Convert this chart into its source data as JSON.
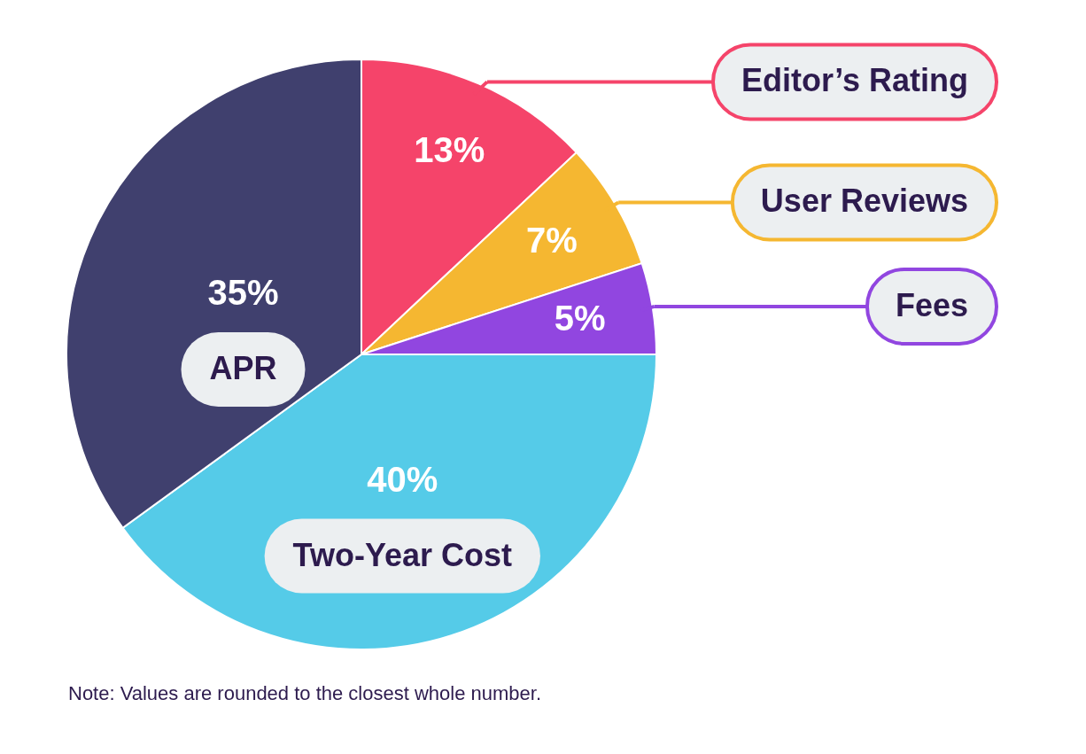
{
  "chart_data": {
    "type": "pie",
    "categories": [
      "Editor’s Rating",
      "User Reviews",
      "Fees",
      "Two-Year Cost",
      "APR"
    ],
    "values": [
      13,
      7,
      5,
      40,
      35
    ],
    "value_labels": [
      "13%",
      "7%",
      "5%",
      "40%",
      "35%"
    ],
    "colors": [
      "#f5446a",
      "#f5b731",
      "#9146e0",
      "#55cbe8",
      "#40406e"
    ],
    "annotations": [
      "Note: Values are rounded to the closest whole number."
    ]
  }
}
